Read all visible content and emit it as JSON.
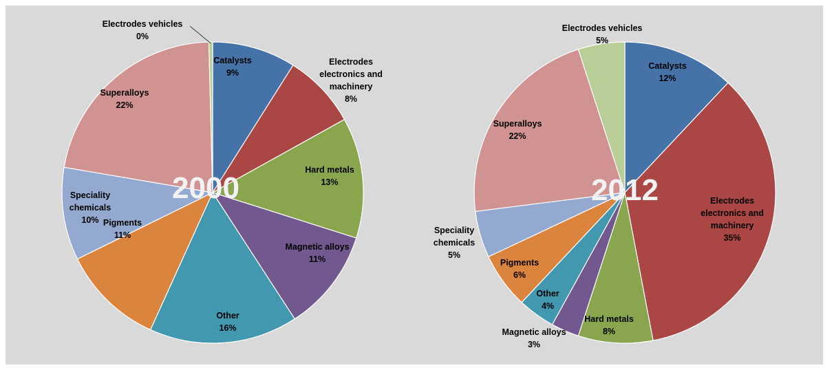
{
  "chart_data": [
    {
      "type": "pie",
      "title": "2000",
      "slices": [
        {
          "label": "Catalysts",
          "value": 9,
          "pct_text": "9%",
          "color": "#4572a7"
        },
        {
          "label": "Electrodes electronics and machinery",
          "value": 8,
          "pct_text": "8%",
          "color": "#aa4643"
        },
        {
          "label": "Hard metals",
          "value": 13,
          "pct_text": "13%",
          "color": "#89a54e"
        },
        {
          "label": "Magnetic alloys",
          "value": 11,
          "pct_text": "11%",
          "color": "#71588f"
        },
        {
          "label": "Other",
          "value": 16,
          "pct_text": "16%",
          "color": "#4198af"
        },
        {
          "label": "Pigments",
          "value": 11,
          "pct_text": "11%",
          "color": "#db843d"
        },
        {
          "label": "Speciality chemicals",
          "value": 10,
          "pct_text": "10%",
          "color": "#93a9cf"
        },
        {
          "label": "Superalloys",
          "value": 22,
          "pct_text": "22%",
          "color": "#d19392"
        },
        {
          "label": "Electrodes vehicles",
          "value": 0.4,
          "pct_text": "0%",
          "color": "#b9cd96"
        }
      ]
    },
    {
      "type": "pie",
      "title": "2012",
      "slices": [
        {
          "label": "Catalysts",
          "value": 12,
          "pct_text": "12%",
          "color": "#4572a7"
        },
        {
          "label": "Electrodes electronics and machinery",
          "value": 35,
          "pct_text": "35%",
          "color": "#aa4643"
        },
        {
          "label": "Hard metals",
          "value": 8,
          "pct_text": "8%",
          "color": "#89a54e"
        },
        {
          "label": "Magnetic alloys",
          "value": 3,
          "pct_text": "3%",
          "color": "#71588f"
        },
        {
          "label": "Other",
          "value": 4,
          "pct_text": "4%",
          "color": "#4198af"
        },
        {
          "label": "Pigments",
          "value": 6,
          "pct_text": "6%",
          "color": "#db843d"
        },
        {
          "label": "Speciality chemicals",
          "value": 5,
          "pct_text": "5%",
          "color": "#93a9cf"
        },
        {
          "label": "Superalloys",
          "value": 22,
          "pct_text": "22%",
          "color": "#d19392"
        },
        {
          "label": "Electrodes vehicles",
          "value": 5,
          "pct_text": "5%",
          "color": "#b9cd96"
        }
      ]
    }
  ]
}
